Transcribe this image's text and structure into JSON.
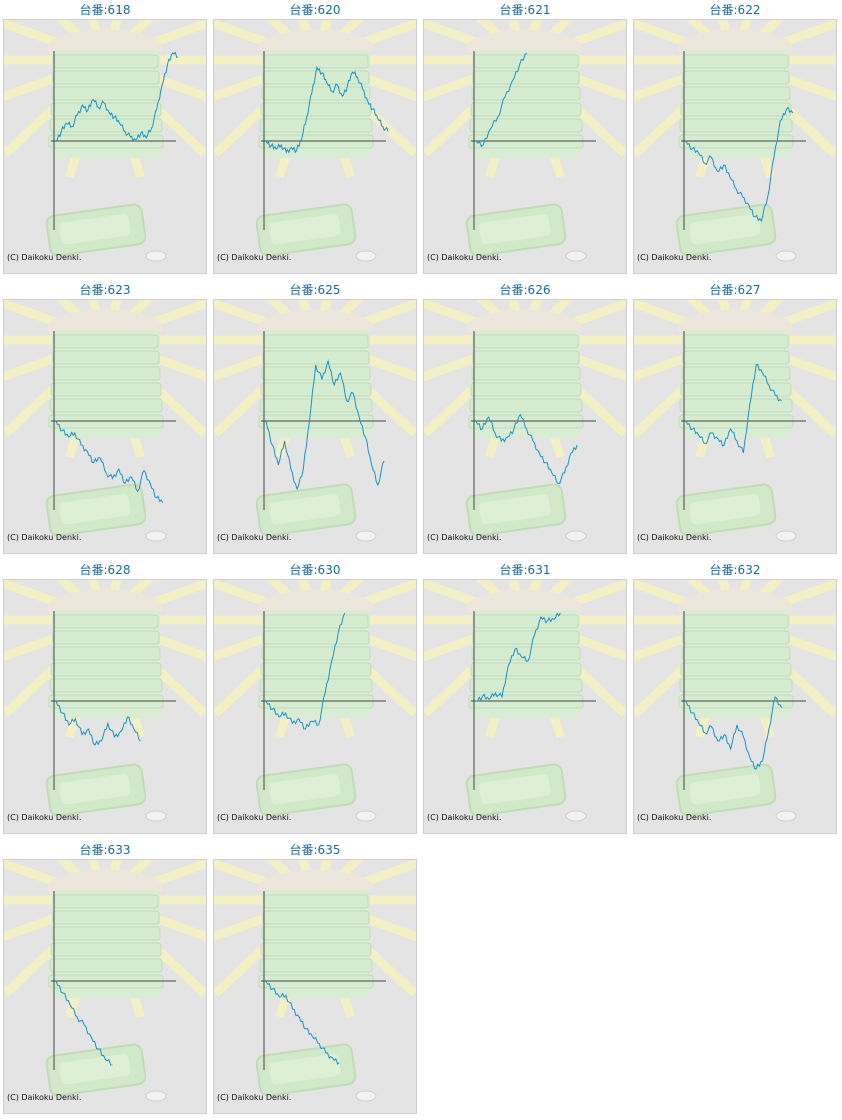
{
  "copyright": "(C) Daikoku Denki.",
  "colors": {
    "title": "#1a6a9e",
    "line": "#1a93c9",
    "axis": "#444444"
  },
  "machines": [
    {
      "title": "台番:618",
      "chart_data": {
        "type": "line",
        "values": [
          0.0,
          0.12,
          0.22,
          0.18,
          0.32,
          0.45,
          0.38,
          0.52,
          0.42,
          0.48,
          0.36,
          0.3,
          0.22,
          0.12,
          0.05,
          0.02,
          0.1,
          0.04,
          0.16,
          0.4,
          0.7,
          0.95,
          1.1,
          1.05
        ]
      }
    },
    {
      "title": "台番:620",
      "chart_data": {
        "type": "line",
        "values": [
          0.0,
          -0.06,
          -0.1,
          -0.05,
          -0.14,
          -0.08,
          -0.12,
          0.02,
          0.3,
          0.6,
          0.92,
          0.85,
          0.72,
          0.62,
          0.7,
          0.56,
          0.68,
          0.86,
          0.8,
          0.65,
          0.5,
          0.4,
          0.28,
          0.18,
          0.12
        ]
      }
    },
    {
      "title": "台番:621",
      "chart_data": {
        "type": "line",
        "values": [
          0.0,
          -0.05,
          0.15,
          0.3,
          0.55,
          0.75,
          0.95,
          1.1
        ]
      }
    },
    {
      "title": "台番:622",
      "chart_data": {
        "type": "line",
        "values": [
          0.0,
          -0.1,
          -0.15,
          -0.28,
          -0.2,
          -0.38,
          -0.3,
          -0.45,
          -0.6,
          -0.7,
          -0.8,
          -0.95,
          -1.0,
          -0.7,
          -0.2,
          0.25,
          0.4,
          0.35
        ]
      }
    },
    {
      "title": "台番:623",
      "chart_data": {
        "type": "line",
        "values": [
          0.0,
          -0.12,
          -0.2,
          -0.15,
          -0.3,
          -0.38,
          -0.52,
          -0.46,
          -0.65,
          -0.72,
          -0.6,
          -0.78,
          -0.7,
          -0.88,
          -0.62,
          -0.78,
          -0.96,
          -1.02
        ]
      }
    },
    {
      "title": "台番:625",
      "chart_data": {
        "type": "line",
        "values": [
          0.0,
          -0.3,
          -0.55,
          -0.25,
          -0.6,
          -0.85,
          -0.6,
          0.0,
          0.7,
          0.52,
          0.75,
          0.45,
          0.6,
          0.25,
          0.35,
          0.05,
          -0.2,
          -0.55,
          -0.8,
          -0.5
        ]
      }
    },
    {
      "title": "台番:626",
      "chart_data": {
        "type": "line",
        "values": [
          0.0,
          -0.1,
          0.05,
          -0.15,
          -0.25,
          -0.2,
          -0.1,
          0.08,
          -0.1,
          -0.25,
          -0.4,
          -0.52,
          -0.65,
          -0.78,
          -0.65,
          -0.4,
          -0.3
        ]
      }
    },
    {
      "title": "台番:627",
      "chart_data": {
        "type": "line",
        "values": [
          0.0,
          -0.1,
          -0.18,
          -0.28,
          -0.15,
          -0.22,
          -0.3,
          -0.1,
          -0.25,
          -0.4,
          0.2,
          0.7,
          0.6,
          0.45,
          0.32,
          0.25
        ]
      }
    },
    {
      "title": "台番:628",
      "chart_data": {
        "type": "line",
        "values": [
          0.0,
          -0.15,
          -0.3,
          -0.22,
          -0.42,
          -0.35,
          -0.55,
          -0.5,
          -0.28,
          -0.45,
          -0.38,
          -0.2,
          -0.35,
          -0.5
        ]
      }
    },
    {
      "title": "台番:630",
      "chart_data": {
        "type": "line",
        "values": [
          0.0,
          -0.1,
          -0.2,
          -0.15,
          -0.28,
          -0.22,
          -0.35,
          -0.25,
          -0.3,
          0.1,
          0.5,
          0.85,
          1.1
        ]
      }
    },
    {
      "title": "台番:631",
      "chart_data": {
        "type": "line",
        "values": [
          0.0,
          0.06,
          0.02,
          0.1,
          0.05,
          0.45,
          0.65,
          0.55,
          0.5,
          0.82,
          1.05,
          1.0,
          1.02,
          1.1
        ]
      }
    },
    {
      "title": "台番:632",
      "chart_data": {
        "type": "line",
        "values": [
          0.0,
          -0.15,
          -0.28,
          -0.4,
          -0.32,
          -0.5,
          -0.42,
          -0.6,
          -0.3,
          -0.45,
          -0.7,
          -0.85,
          -0.75,
          -0.35,
          0.05,
          -0.08
        ]
      }
    },
    {
      "title": "台番:633",
      "chart_data": {
        "type": "line",
        "values": [
          0.0,
          -0.15,
          -0.3,
          -0.45,
          -0.55,
          -0.7,
          -0.85,
          -0.98,
          -1.05
        ]
      }
    },
    {
      "title": "台番:635",
      "chart_data": {
        "type": "line",
        "values": [
          0.0,
          -0.1,
          -0.2,
          -0.18,
          -0.35,
          -0.45,
          -0.6,
          -0.7,
          -0.78,
          -0.9,
          -0.96,
          -1.02
        ]
      }
    }
  ]
}
